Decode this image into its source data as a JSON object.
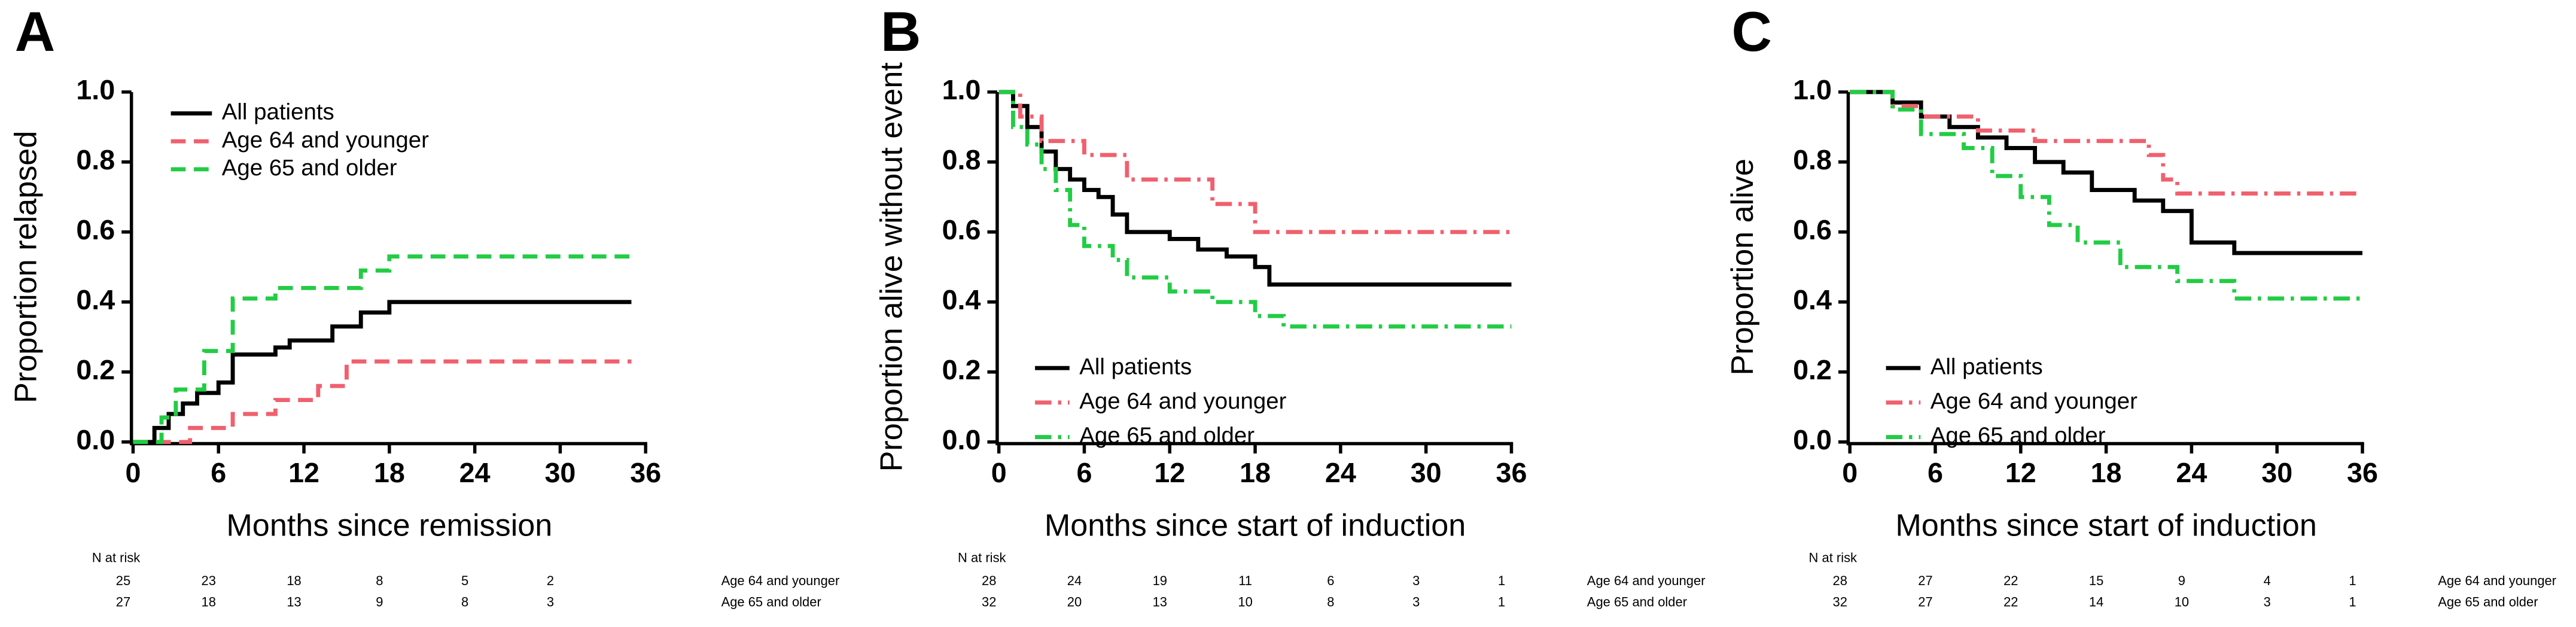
{
  "chart_data": [
    {
      "type": "step",
      "label": "A",
      "xlabel": "Months since remission",
      "ylabel": "Proportion relapsed",
      "xlim": [
        0,
        36
      ],
      "ylim": [
        0,
        1
      ],
      "xticks": [
        0,
        6,
        12,
        18,
        24,
        30,
        36
      ],
      "yticks": [
        {
          "value": 0,
          "label": "0.0"
        },
        {
          "value": 0.2,
          "label": "0.2"
        },
        {
          "value": 0.4,
          "label": "0.4"
        },
        {
          "value": 0.6,
          "label": "0.6"
        },
        {
          "value": 0.8,
          "label": "0.8"
        },
        {
          "value": 1,
          "label": "1.0"
        }
      ],
      "legend": "upper left",
      "series": [
        {
          "name": "All patients",
          "color": "#000000",
          "dash": "solid",
          "x": [
            0,
            1.5,
            2.5,
            3.5,
            4.5,
            6,
            7,
            10,
            11,
            14,
            16,
            18,
            35
          ],
          "values": [
            0,
            0.04,
            0.08,
            0.11,
            0.14,
            0.17,
            0.25,
            0.27,
            0.29,
            0.33,
            0.37,
            0.4,
            0.4
          ]
        },
        {
          "name": "Age 64 and younger",
          "color": "#f0606e",
          "dash": "dashed",
          "x": [
            0,
            4,
            7,
            10,
            13,
            15,
            35
          ],
          "values": [
            0,
            0.04,
            0.08,
            0.12,
            0.16,
            0.23,
            0.23
          ]
        },
        {
          "name": "Age 65 and older",
          "color": "#22cc44",
          "dash": "dashed",
          "x": [
            0,
            2,
            3,
            5,
            7,
            10,
            16,
            18,
            35
          ],
          "values": [
            0,
            0.07,
            0.15,
            0.26,
            0.41,
            0.44,
            0.49,
            0.53,
            0.53
          ]
        }
      ],
      "risk_table": {
        "title": "N at risk",
        "rows": [
          {
            "name": "Age 64 and younger",
            "values": [
              25,
              23,
              18,
              8,
              5,
              2
            ]
          },
          {
            "name": "Age 65 and older",
            "values": [
              27,
              18,
              13,
              9,
              8,
              3
            ]
          }
        ]
      }
    },
    {
      "type": "step",
      "label": "B",
      "xlabel": "Months since start of induction",
      "ylabel": "Proportion alive without event",
      "xlim": [
        0,
        36
      ],
      "ylim": [
        0,
        1
      ],
      "xticks": [
        0,
        6,
        12,
        18,
        24,
        30,
        36
      ],
      "yticks": [
        {
          "value": 0,
          "label": "0.0"
        },
        {
          "value": 0.2,
          "label": "0.2"
        },
        {
          "value": 0.4,
          "label": "0.4"
        },
        {
          "value": 0.6,
          "label": "0.6"
        },
        {
          "value": 0.8,
          "label": "0.8"
        },
        {
          "value": 1,
          "label": "1.0"
        }
      ],
      "legend": "lower left",
      "series": [
        {
          "name": "All patients",
          "color": "#000000",
          "dash": "solid",
          "x": [
            0,
            1,
            2,
            3,
            4,
            5,
            6,
            7,
            8,
            9,
            12,
            14,
            16,
            18,
            19,
            36
          ],
          "values": [
            1,
            0.96,
            0.9,
            0.83,
            0.78,
            0.75,
            0.72,
            0.7,
            0.65,
            0.6,
            0.58,
            0.55,
            0.53,
            0.5,
            0.45,
            0.45
          ]
        },
        {
          "name": "Age 64 and younger",
          "color": "#f0606e",
          "dash": "dashdot",
          "x": [
            0,
            1.5,
            3,
            6,
            9,
            15,
            18,
            36
          ],
          "values": [
            1,
            0.93,
            0.86,
            0.82,
            0.75,
            0.68,
            0.6,
            0.6
          ]
        },
        {
          "name": "Age 65 and older",
          "color": "#22cc44",
          "dash": "dashdot",
          "x": [
            0,
            1,
            2,
            3,
            4,
            5,
            6,
            8,
            9,
            12,
            15,
            18,
            20,
            36
          ],
          "values": [
            1,
            0.9,
            0.85,
            0.78,
            0.72,
            0.62,
            0.56,
            0.52,
            0.47,
            0.43,
            0.4,
            0.36,
            0.33,
            0.33
          ]
        }
      ],
      "risk_table": {
        "title": "N at risk",
        "rows": [
          {
            "name": "Age 64 and younger",
            "values": [
              28,
              24,
              19,
              11,
              6,
              3,
              1
            ]
          },
          {
            "name": "Age 65 and older",
            "values": [
              32,
              20,
              13,
              10,
              8,
              3,
              1
            ]
          }
        ]
      }
    },
    {
      "type": "step",
      "label": "C",
      "xlabel": "Months since start of induction",
      "ylabel": "Proportion alive",
      "xlim": [
        0,
        36
      ],
      "ylim": [
        0,
        1
      ],
      "xticks": [
        0,
        6,
        12,
        18,
        24,
        30,
        36
      ],
      "yticks": [
        {
          "value": 0,
          "label": "0.0"
        },
        {
          "value": 0.2,
          "label": "0.2"
        },
        {
          "value": 0.4,
          "label": "0.4"
        },
        {
          "value": 0.6,
          "label": "0.6"
        },
        {
          "value": 0.8,
          "label": "0.8"
        },
        {
          "value": 1,
          "label": "1.0"
        }
      ],
      "legend": "lower left",
      "series": [
        {
          "name": "All patients",
          "color": "#000000",
          "dash": "solid",
          "x": [
            0,
            3,
            5,
            7,
            9,
            11,
            13,
            15,
            17,
            20,
            22,
            24,
            27,
            36
          ],
          "values": [
            1,
            0.97,
            0.93,
            0.9,
            0.87,
            0.84,
            0.8,
            0.77,
            0.72,
            0.69,
            0.66,
            0.57,
            0.54,
            0.54
          ]
        },
        {
          "name": "Age 64 and younger",
          "color": "#f0606e",
          "dash": "dashdot",
          "x": [
            0,
            3,
            5,
            9,
            13,
            21,
            22,
            23,
            36
          ],
          "values": [
            1,
            0.96,
            0.93,
            0.89,
            0.86,
            0.82,
            0.75,
            0.71,
            0.71
          ]
        },
        {
          "name": "Age 65 and older",
          "color": "#22cc44",
          "dash": "dashdot",
          "x": [
            0,
            3,
            5,
            8,
            10,
            12,
            14,
            16,
            19,
            23,
            27,
            36
          ],
          "values": [
            1,
            0.95,
            0.88,
            0.84,
            0.76,
            0.7,
            0.62,
            0.57,
            0.5,
            0.46,
            0.41,
            0.41
          ]
        }
      ],
      "risk_table": {
        "title": "N at risk",
        "rows": [
          {
            "name": "Age 64 and younger",
            "values": [
              28,
              27,
              22,
              15,
              9,
              4,
              1
            ]
          },
          {
            "name": "Age 65 and older",
            "values": [
              32,
              27,
              22,
              14,
              10,
              3,
              1
            ]
          }
        ]
      }
    }
  ]
}
